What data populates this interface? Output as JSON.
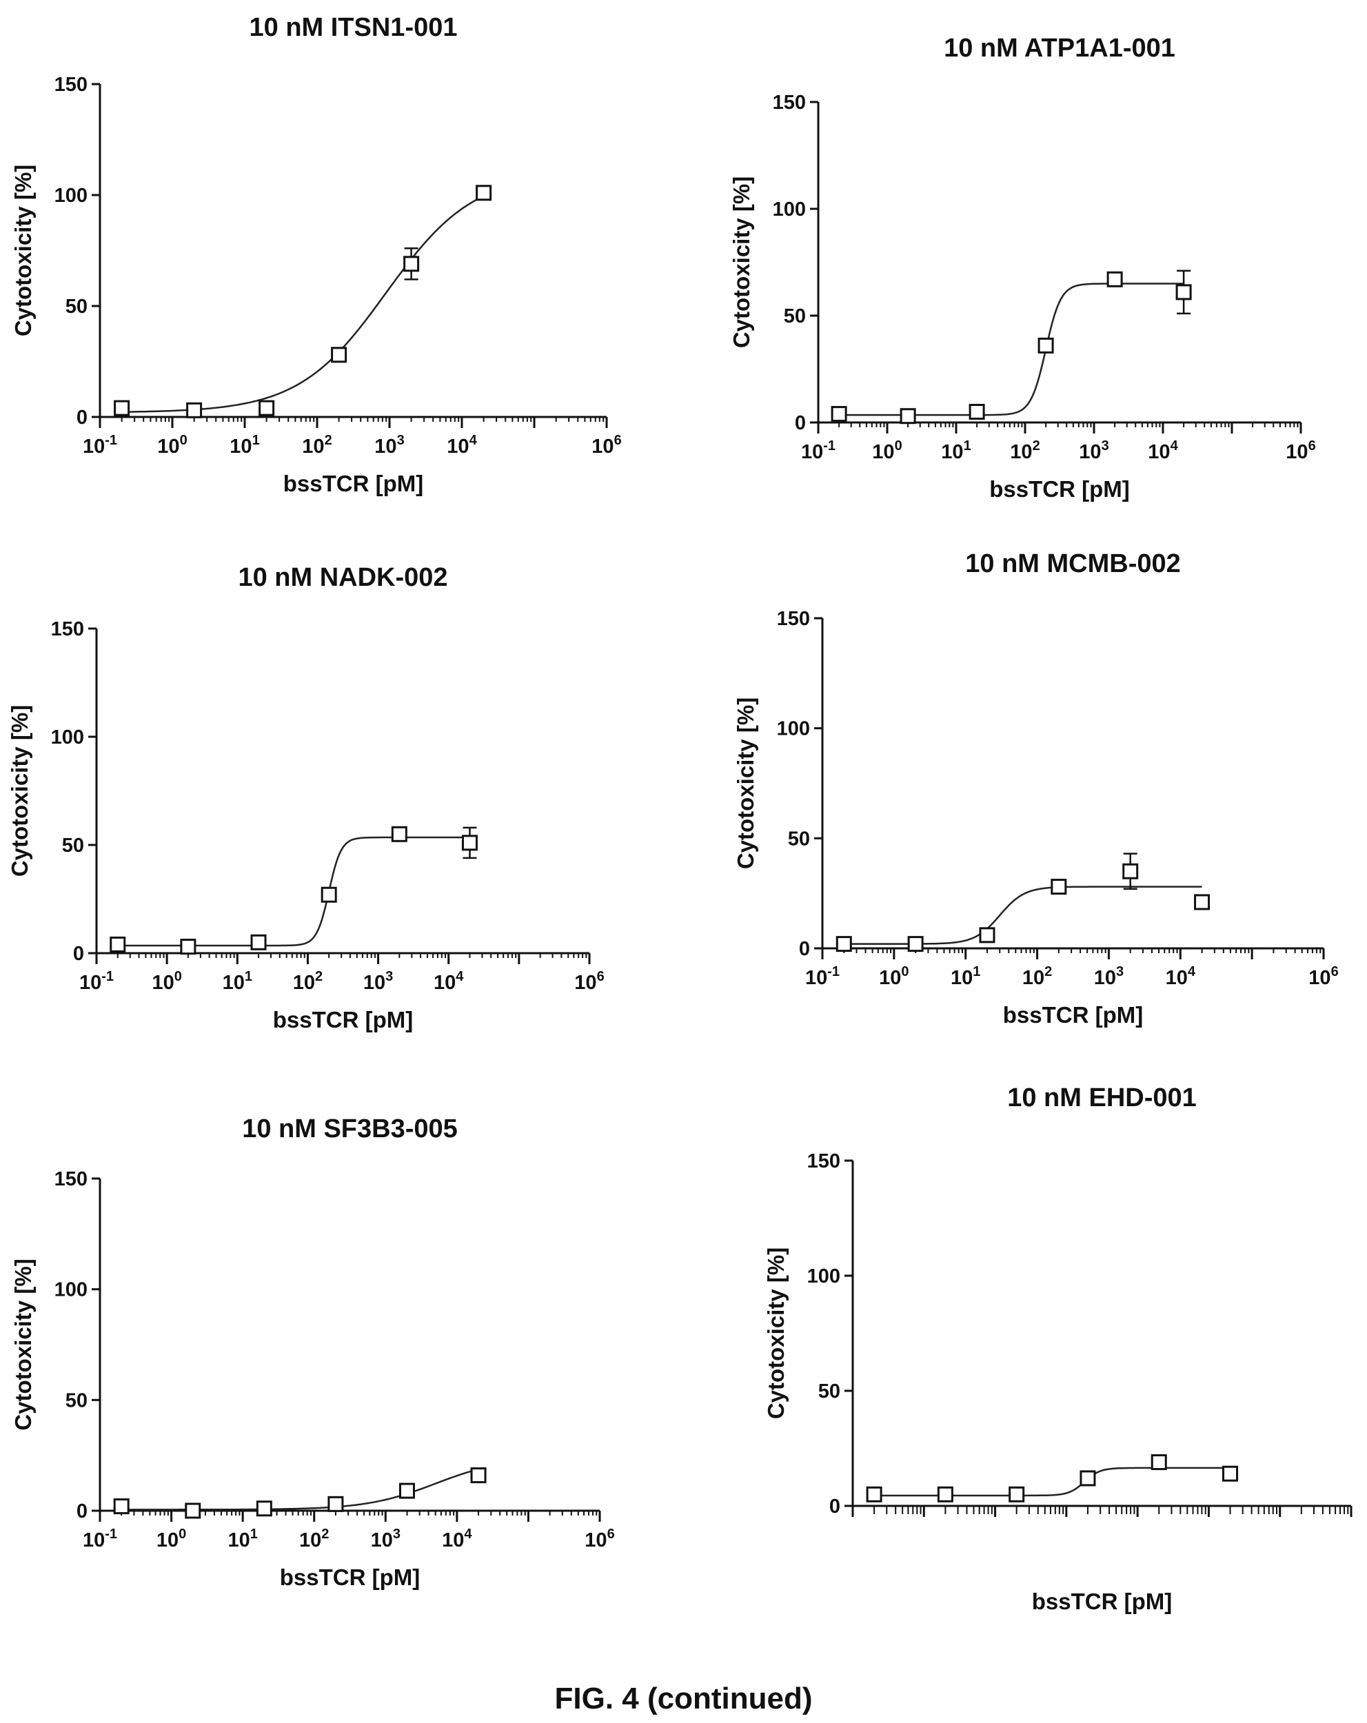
{
  "figure": {
    "caption": "FIG. 4 (continued)"
  },
  "chart_data": [
    {
      "type": "scatter",
      "title": "10 nM ITSN1-001",
      "xlabel": "bssTCR [pM]",
      "ylabel": "Cytotoxicity [%]",
      "x_scale": "log",
      "xlim": [
        0.1,
        1000000
      ],
      "ylim": [
        0,
        150
      ],
      "x_ticks": [
        0.1,
        1,
        10,
        100,
        1000,
        10000,
        1000000
      ],
      "x_tick_labels": [
        {
          "base": "10",
          "exp": "-1"
        },
        {
          "base": "10",
          "exp": "0"
        },
        {
          "base": "10",
          "exp": "1"
        },
        {
          "base": "10",
          "exp": "2"
        },
        {
          "base": "10",
          "exp": "3"
        },
        {
          "base": "10",
          "exp": "4"
        },
        {
          "base": "10",
          "exp": "6"
        }
      ],
      "y_ticks": [
        0,
        50,
        100,
        150
      ],
      "y_tick_labels": [
        "0",
        "50",
        "100",
        "150"
      ],
      "series": [
        {
          "x": [
            0.2,
            2,
            20,
            200,
            2000,
            20000
          ],
          "y": [
            4,
            3,
            4,
            28,
            69,
            101
          ],
          "err": [
            0,
            0,
            0,
            0,
            7,
            0
          ]
        }
      ],
      "fit": {
        "model": "4PL",
        "bottom": 2,
        "top": 110,
        "ec50": 900,
        "hill": 0.72
      }
    },
    {
      "type": "scatter",
      "title": "10 nM ATP1A1-001",
      "xlabel": "bssTCR [pM]",
      "ylabel": "Cytotoxicity [%]",
      "x_scale": "log",
      "xlim": [
        0.1,
        1000000
      ],
      "ylim": [
        0,
        150
      ],
      "x_ticks": [
        0.1,
        1,
        10,
        100,
        1000,
        10000,
        1000000
      ],
      "x_tick_labels": [
        {
          "base": "10",
          "exp": "-1"
        },
        {
          "base": "10",
          "exp": "0"
        },
        {
          "base": "10",
          "exp": "1"
        },
        {
          "base": "10",
          "exp": "2"
        },
        {
          "base": "10",
          "exp": "3"
        },
        {
          "base": "10",
          "exp": "4"
        },
        {
          "base": "10",
          "exp": "6"
        }
      ],
      "y_ticks": [
        0,
        50,
        100,
        150
      ],
      "y_tick_labels": [
        "0",
        "50",
        "100",
        "150"
      ],
      "series": [
        {
          "x": [
            0.2,
            2,
            20,
            200,
            2000,
            20000
          ],
          "y": [
            4,
            3,
            5,
            36,
            67,
            61
          ],
          "err": [
            0,
            0,
            0,
            0,
            0,
            10
          ]
        }
      ],
      "fit": {
        "model": "4PL",
        "bottom": 3.5,
        "top": 65,
        "ec50": 200,
        "hill": 4
      }
    },
    {
      "type": "scatter",
      "title": "10 nM NADK-002",
      "xlabel": "bssTCR [pM]",
      "ylabel": "Cytotoxicity [%]",
      "x_scale": "log",
      "xlim": [
        0.1,
        1000000
      ],
      "ylim": [
        0,
        150
      ],
      "x_ticks": [
        0.1,
        1,
        10,
        100,
        1000,
        10000,
        1000000
      ],
      "x_tick_labels": [
        {
          "base": "10",
          "exp": "-1"
        },
        {
          "base": "10",
          "exp": "0"
        },
        {
          "base": "10",
          "exp": "1"
        },
        {
          "base": "10",
          "exp": "2"
        },
        {
          "base": "10",
          "exp": "3"
        },
        {
          "base": "10",
          "exp": "4"
        },
        {
          "base": "10",
          "exp": "6"
        }
      ],
      "y_ticks": [
        0,
        50,
        100,
        150
      ],
      "y_tick_labels": [
        "0",
        "50",
        "100",
        "150"
      ],
      "series": [
        {
          "x": [
            0.2,
            2,
            20,
            200,
            2000,
            20000
          ],
          "y": [
            4,
            3,
            5,
            27,
            55,
            51
          ],
          "err": [
            0,
            0,
            0,
            0,
            0,
            7
          ]
        }
      ],
      "fit": {
        "model": "4PL",
        "bottom": 3.5,
        "top": 53.5,
        "ec50": 200,
        "hill": 5
      }
    },
    {
      "type": "scatter",
      "title": "10 nM MCMB-002",
      "xlabel": "bssTCR [pM]",
      "ylabel": "Cytotoxicity [%]",
      "x_scale": "log",
      "xlim": [
        0.1,
        1000000
      ],
      "ylim": [
        0,
        150
      ],
      "x_ticks": [
        0.1,
        1,
        10,
        100,
        1000,
        10000,
        1000000
      ],
      "x_tick_labels": [
        {
          "base": "10",
          "exp": "-1"
        },
        {
          "base": "10",
          "exp": "0"
        },
        {
          "base": "10",
          "exp": "1"
        },
        {
          "base": "10",
          "exp": "2"
        },
        {
          "base": "10",
          "exp": "3"
        },
        {
          "base": "10",
          "exp": "4"
        },
        {
          "base": "10",
          "exp": "6"
        }
      ],
      "y_ticks": [
        0,
        50,
        100,
        150
      ],
      "y_tick_labels": [
        "0",
        "50",
        "100",
        "150"
      ],
      "series": [
        {
          "x": [
            0.2,
            2,
            20,
            200,
            2000,
            20000
          ],
          "y": [
            2,
            2,
            6,
            28,
            35,
            21
          ],
          "err": [
            0,
            0,
            0,
            0,
            8,
            0
          ]
        }
      ],
      "fit": {
        "model": "4PL",
        "bottom": 2,
        "top": 28,
        "ec50": 30,
        "hill": 2.5
      }
    },
    {
      "type": "scatter",
      "title": "10 nM SF3B3-005",
      "xlabel": "bssTCR [pM]",
      "ylabel": "Cytotoxicity [%]",
      "x_scale": "log",
      "xlim": [
        0.1,
        1000000
      ],
      "ylim": [
        0,
        150
      ],
      "x_ticks": [
        0.1,
        1,
        10,
        100,
        1000,
        10000,
        1000000
      ],
      "x_tick_labels": [
        {
          "base": "10",
          "exp": "-1"
        },
        {
          "base": "10",
          "exp": "0"
        },
        {
          "base": "10",
          "exp": "1"
        },
        {
          "base": "10",
          "exp": "2"
        },
        {
          "base": "10",
          "exp": "3"
        },
        {
          "base": "10",
          "exp": "4"
        },
        {
          "base": "10",
          "exp": "6"
        }
      ],
      "y_ticks": [
        0,
        50,
        100,
        150
      ],
      "y_tick_labels": [
        "0",
        "50",
        "100",
        "150"
      ],
      "series": [
        {
          "x": [
            0.2,
            2,
            20,
            200,
            2000,
            20000
          ],
          "y": [
            2,
            0,
            1,
            3,
            9,
            16
          ],
          "err": [
            0,
            0,
            0,
            0,
            0,
            0
          ]
        }
      ],
      "fit": {
        "model": "4PL",
        "bottom": 0.5,
        "top": 24,
        "ec50": 5000,
        "hill": 0.9
      }
    },
    {
      "type": "scatter",
      "title": "10 nM EHD-001",
      "xlabel": "bssTCR [pM]",
      "ylabel": "Cytotoxicity [%]",
      "x_scale": "log",
      "xlim": [
        0.1,
        1000000
      ],
      "ylim": [
        0,
        150
      ],
      "x_ticks": [],
      "x_tick_labels": [],
      "minor_log_ticks": true,
      "y_ticks": [
        0,
        50,
        100,
        150
      ],
      "y_tick_labels": [
        "0",
        "50",
        "100",
        "150"
      ],
      "series": [
        {
          "x": [
            0.2,
            2,
            20,
            200,
            2000,
            20000
          ],
          "y": [
            5,
            5,
            5,
            12,
            19,
            14
          ],
          "err": [
            0,
            0,
            0,
            0,
            0,
            0
          ]
        }
      ],
      "fit": {
        "model": "4PL",
        "bottom": 4.5,
        "top": 16.5,
        "ec50": 180,
        "hill": 4
      }
    }
  ]
}
